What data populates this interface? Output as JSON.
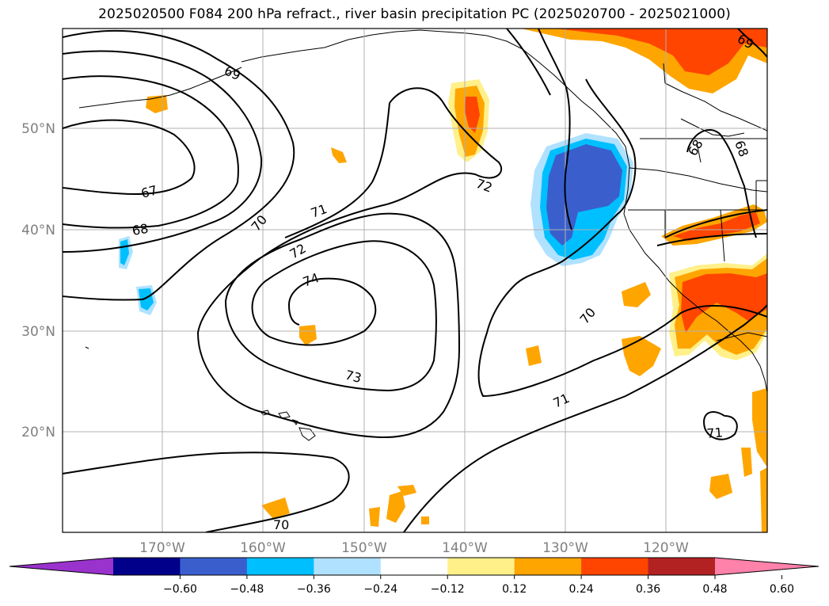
{
  "title": "2025020500 F084 200 hPa refract., river basin precipitation PC (2025020700 - 2025021000)",
  "axes": {
    "lat_labels": [
      "50°N",
      "40°N",
      "30°N",
      "20°N"
    ],
    "lon_labels": [
      "170°W",
      "160°W",
      "150°W",
      "140°W",
      "130°W",
      "120°W"
    ]
  },
  "contour_labels": [
    "69",
    "67",
    "68",
    "70",
    "71",
    "72",
    "74",
    "73",
    "72",
    "70",
    "71",
    "71",
    "70",
    "69",
    "68",
    "68"
  ],
  "colorbar": {
    "colors": [
      "#9a32cd",
      "#00008b",
      "#3a5fcd",
      "#00bfff",
      "#b0e2ff",
      "#ffffff",
      "#fff08a",
      "#ffa500",
      "#ff4500",
      "#b22222",
      "#ff82ab"
    ],
    "tick_labels": [
      "−0.60",
      "−0.48",
      "−0.36",
      "−0.24",
      "−0.12",
      "0.12",
      "0.24",
      "0.36",
      "0.48",
      "0.60"
    ]
  }
}
